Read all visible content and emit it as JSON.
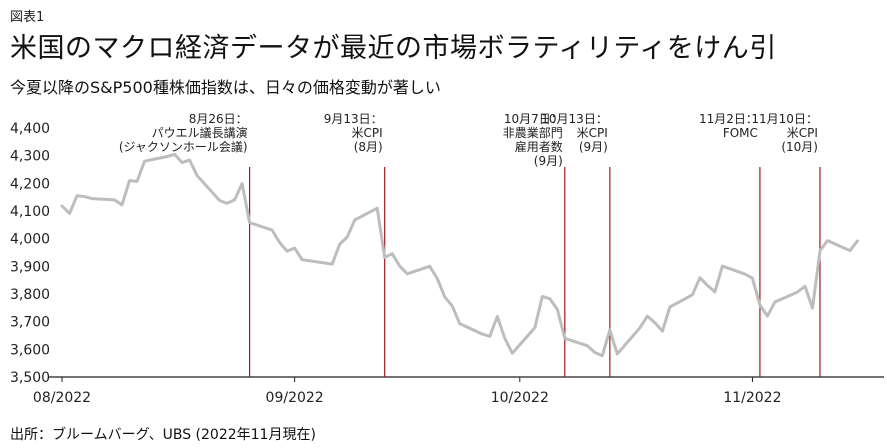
{
  "figure_label": "図表1",
  "title": "米国のマクロ経済データが最近の市場ボラティリティをけん引",
  "subtitle": "今夏以降のS&P500種株価指数は、日々の価格変動が著しい",
  "source": "出所：ブルームバーグ、UBS (2022年11月現在)",
  "colors": {
    "line": "#bdbdbd",
    "event_line": "#a4161a",
    "axis": "#222222"
  },
  "chart_data": {
    "type": "line",
    "title": "",
    "xlabel": "",
    "ylabel": "",
    "ylim": [
      3500,
      4400
    ],
    "yticks": [
      3500,
      3600,
      3700,
      3800,
      3900,
      4000,
      4100,
      4200,
      4300,
      4400
    ],
    "ytick_labels": [
      "3,500",
      "3,600",
      "3,700",
      "3,800",
      "3,900",
      "4,000",
      "4,100",
      "4,200",
      "4,300",
      "4,400"
    ],
    "xlim": [
      "2022-08-01",
      "2022-11-18"
    ],
    "xticks": [
      {
        "date": "2022-08-01",
        "label": "08/2022"
      },
      {
        "date": "2022-09-01",
        "label": "09/2022"
      },
      {
        "date": "2022-10-01",
        "label": "10/2022"
      },
      {
        "date": "2022-11-01",
        "label": "11/2022"
      }
    ],
    "series": [
      {
        "points": [
          [
            "2022-08-01",
            4118
          ],
          [
            "2022-08-02",
            4091
          ],
          [
            "2022-08-03",
            4155
          ],
          [
            "2022-08-04",
            4152
          ],
          [
            "2022-08-05",
            4145
          ],
          [
            "2022-08-08",
            4140
          ],
          [
            "2022-08-09",
            4122
          ],
          [
            "2022-08-10",
            4210
          ],
          [
            "2022-08-11",
            4207
          ],
          [
            "2022-08-12",
            4280
          ],
          [
            "2022-08-15",
            4297
          ],
          [
            "2022-08-16",
            4305
          ],
          [
            "2022-08-17",
            4275
          ],
          [
            "2022-08-18",
            4284
          ],
          [
            "2022-08-19",
            4228
          ],
          [
            "2022-08-22",
            4138
          ],
          [
            "2022-08-23",
            4128
          ],
          [
            "2022-08-24",
            4140
          ],
          [
            "2022-08-25",
            4199
          ],
          [
            "2022-08-26",
            4058
          ],
          [
            "2022-08-29",
            4031
          ],
          [
            "2022-08-30",
            3986
          ],
          [
            "2022-08-31",
            3955
          ],
          [
            "2022-09-01",
            3966
          ],
          [
            "2022-09-02",
            3924
          ],
          [
            "2022-09-06",
            3908
          ],
          [
            "2022-09-07",
            3980
          ],
          [
            "2022-09-08",
            4006
          ],
          [
            "2022-09-09",
            4067
          ],
          [
            "2022-09-12",
            4110
          ],
          [
            "2022-09-13",
            3932
          ],
          [
            "2022-09-14",
            3946
          ],
          [
            "2022-09-15",
            3901
          ],
          [
            "2022-09-16",
            3873
          ],
          [
            "2022-09-19",
            3900
          ],
          [
            "2022-09-20",
            3856
          ],
          [
            "2022-09-21",
            3790
          ],
          [
            "2022-09-22",
            3757
          ],
          [
            "2022-09-23",
            3693
          ],
          [
            "2022-09-26",
            3655
          ],
          [
            "2022-09-27",
            3647
          ],
          [
            "2022-09-28",
            3719
          ],
          [
            "2022-09-29",
            3640
          ],
          [
            "2022-09-30",
            3586
          ],
          [
            "2022-10-03",
            3678
          ],
          [
            "2022-10-04",
            3791
          ],
          [
            "2022-10-05",
            3783
          ],
          [
            "2022-10-06",
            3745
          ],
          [
            "2022-10-07",
            3640
          ],
          [
            "2022-10-10",
            3613
          ],
          [
            "2022-10-11",
            3589
          ],
          [
            "2022-10-12",
            3577
          ],
          [
            "2022-10-13",
            3670
          ],
          [
            "2022-10-14",
            3583
          ],
          [
            "2022-10-17",
            3678
          ],
          [
            "2022-10-18",
            3720
          ],
          [
            "2022-10-19",
            3696
          ],
          [
            "2022-10-20",
            3666
          ],
          [
            "2022-10-21",
            3753
          ],
          [
            "2022-10-24",
            3797
          ],
          [
            "2022-10-25",
            3859
          ],
          [
            "2022-10-26",
            3831
          ],
          [
            "2022-10-27",
            3808
          ],
          [
            "2022-10-28",
            3901
          ],
          [
            "2022-10-31",
            3872
          ],
          [
            "2022-11-01",
            3857
          ],
          [
            "2022-11-02",
            3760
          ],
          [
            "2022-11-03",
            3720
          ],
          [
            "2022-11-04",
            3771
          ],
          [
            "2022-11-07",
            3807
          ],
          [
            "2022-11-08",
            3828
          ],
          [
            "2022-11-09",
            3749
          ],
          [
            "2022-11-10",
            3956
          ],
          [
            "2022-11-11",
            3993
          ],
          [
            "2022-11-14",
            3957
          ],
          [
            "2022-11-15",
            3992
          ]
        ]
      }
    ],
    "events": [
      {
        "date": "2022-08-26",
        "lines": [
          "8月26日：",
          "パウエル議長講演",
          "(ジャクソンホール会議)"
        ]
      },
      {
        "date": "2022-09-13",
        "lines": [
          "9月13日：",
          "米CPI",
          "(8月)"
        ]
      },
      {
        "date": "2022-10-07",
        "lines": [
          "10月7日：",
          "非農業部門",
          "雇用者数",
          "(9月)"
        ]
      },
      {
        "date": "2022-10-13",
        "lines": [
          "10月13日：",
          "米CPI",
          "(9月)"
        ]
      },
      {
        "date": "2022-11-02",
        "lines": [
          "11月2日：",
          "FOMC"
        ]
      },
      {
        "date": "2022-11-10",
        "lines": [
          "11月10日：",
          "米CPI",
          "(10月)"
        ]
      }
    ],
    "grid": false,
    "legend": "none"
  }
}
